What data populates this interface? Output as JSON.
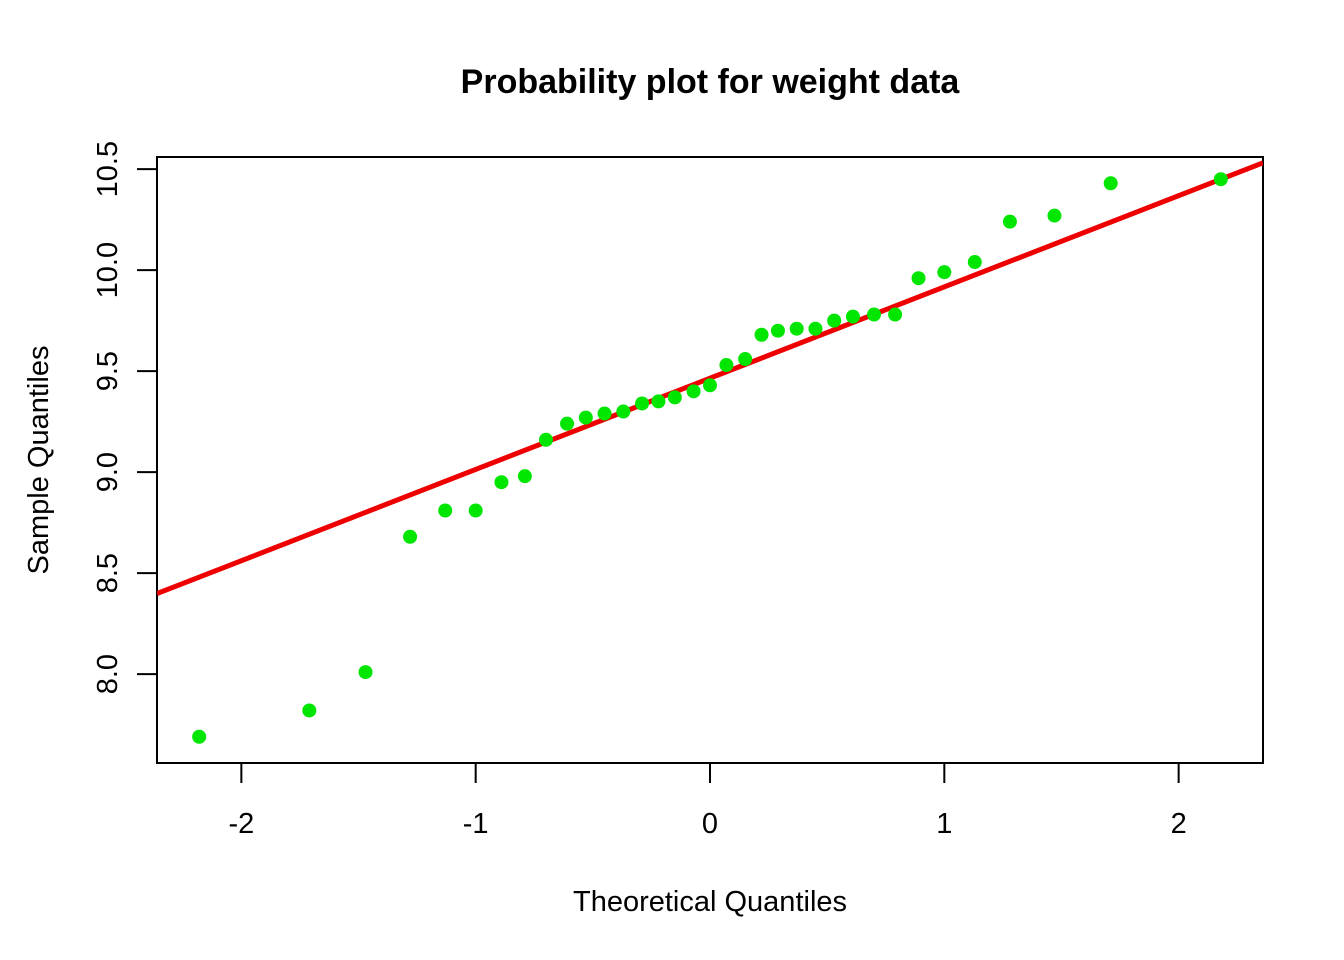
{
  "chart_data": {
    "type": "scatter",
    "title": "Probability plot for weight data",
    "xlabel": "Theoretical Quantiles",
    "ylabel": "Sample Quantiles",
    "xlim": [
      -2.36,
      2.36
    ],
    "ylim": [
      7.56,
      10.56
    ],
    "x_ticks": [
      -2,
      -1,
      0,
      1,
      2
    ],
    "x_tick_labels": [
      "-2",
      "-1",
      "0",
      "1",
      "2"
    ],
    "y_ticks": [
      8.0,
      8.5,
      9.0,
      9.5,
      10.0,
      10.5
    ],
    "y_tick_labels": [
      "8.0",
      "8.5",
      "9.0",
      "9.5",
      "10.0",
      "10.5"
    ],
    "grid": false,
    "point_color": "#00e600",
    "line_color": "#ee0000",
    "series": [
      {
        "type": "points",
        "x": [
          -2.18,
          -1.71,
          -1.47,
          -1.28,
          -1.13,
          -1.0,
          -0.89,
          -0.79,
          -0.7,
          -0.61,
          -0.53,
          -0.45,
          -0.37,
          -0.29,
          -0.22,
          -0.15,
          -0.07,
          0.0,
          0.07,
          0.15,
          0.22,
          0.29,
          0.37,
          0.45,
          0.53,
          0.61,
          0.7,
          0.79,
          0.89,
          1.0,
          1.13,
          1.28,
          1.47,
          1.71,
          2.18
        ],
        "y": [
          7.69,
          7.82,
          8.01,
          8.68,
          8.81,
          8.81,
          8.95,
          8.98,
          9.16,
          9.24,
          9.27,
          9.29,
          9.3,
          9.34,
          9.35,
          9.37,
          9.4,
          9.43,
          9.53,
          9.56,
          9.68,
          9.7,
          9.71,
          9.71,
          9.75,
          9.77,
          9.78,
          9.78,
          9.96,
          9.99,
          10.04,
          10.24,
          10.27,
          10.43,
          10.45
        ]
      },
      {
        "type": "line",
        "intercept": 9.465,
        "slope": 0.4518
      }
    ]
  }
}
